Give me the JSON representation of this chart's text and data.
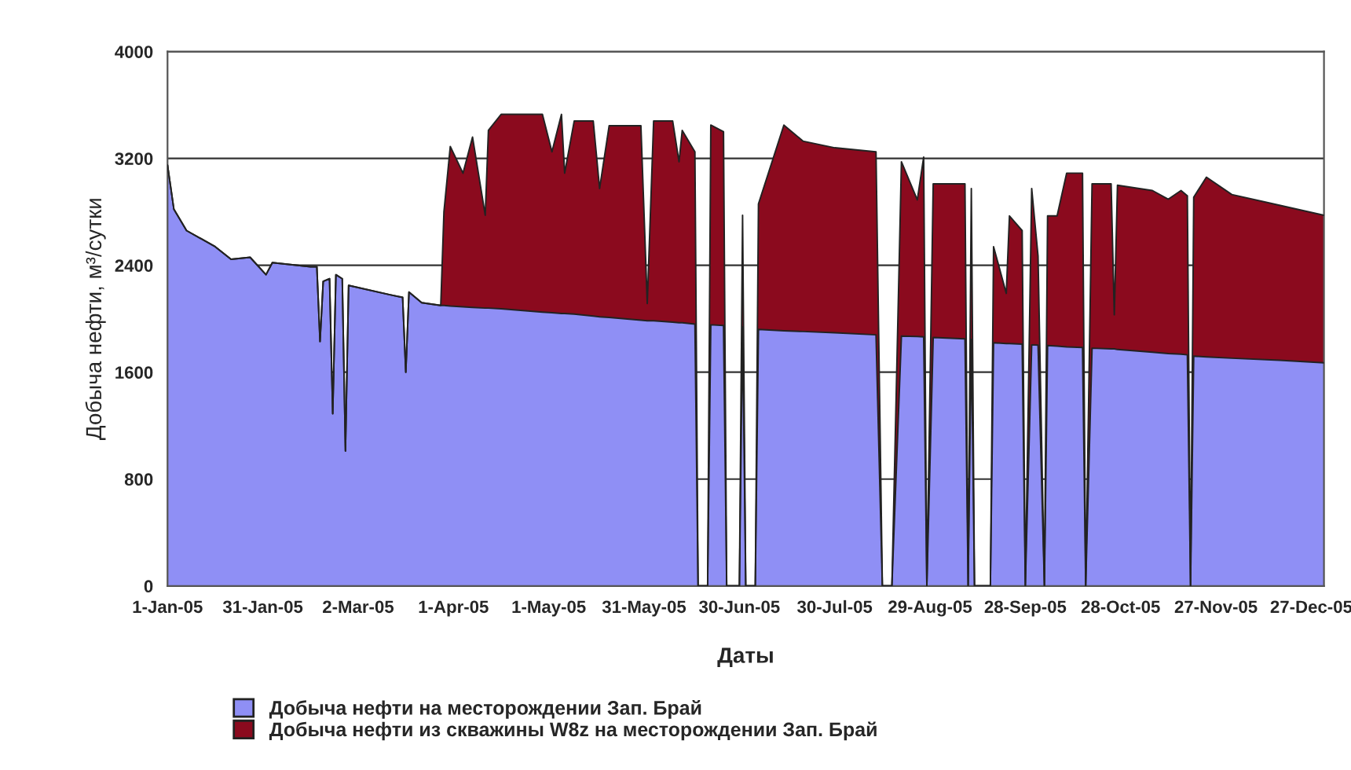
{
  "chart_data": {
    "type": "area",
    "stacked": true,
    "ylabel": "Добыча нефти, м³/сутки",
    "xlabel": "Даты",
    "x": [
      "2005-01-01",
      "2005-01-03",
      "2005-01-07",
      "2005-01-16",
      "2005-01-21",
      "2005-01-27",
      "2005-02-01",
      "2005-02-03",
      "2005-02-15",
      "2005-02-17",
      "2005-02-18",
      "2005-02-19",
      "2005-02-21",
      "2005-02-22",
      "2005-02-23",
      "2005-02-25",
      "2005-02-26",
      "2005-02-27",
      "2005-03-12",
      "2005-03-16",
      "2005-03-17",
      "2005-03-18",
      "2005-03-22",
      "2005-03-28",
      "2005-03-29",
      "2005-03-31",
      "2005-04-04",
      "2005-04-07",
      "2005-04-11",
      "2005-04-12",
      "2005-04-16",
      "2005-04-29",
      "2005-05-02",
      "2005-05-05",
      "2005-05-06",
      "2005-05-09",
      "2005-05-15",
      "2005-05-17",
      "2005-05-20",
      "2005-05-30",
      "2005-06-01",
      "2005-06-03",
      "2005-06-09",
      "2005-06-11",
      "2005-06-12",
      "2005-06-16",
      "2005-06-17",
      "2005-06-20",
      "2005-06-21",
      "2005-06-25",
      "2005-06-26",
      "2005-06-30",
      "2005-07-01",
      "2005-07-02",
      "2005-07-05",
      "2005-07-06",
      "2005-07-14",
      "2005-07-20",
      "2005-07-30",
      "2005-08-12",
      "2005-08-14",
      "2005-08-17",
      "2005-08-20",
      "2005-08-25",
      "2005-08-27",
      "2005-08-28",
      "2005-08-30",
      "2005-09-09",
      "2005-09-10",
      "2005-09-11",
      "2005-09-12",
      "2005-09-17",
      "2005-09-18",
      "2005-09-22",
      "2005-09-23",
      "2005-09-27",
      "2005-09-28",
      "2005-09-30",
      "2005-10-02",
      "2005-10-04",
      "2005-10-05",
      "2005-10-08",
      "2005-10-11",
      "2005-10-16",
      "2005-10-17",
      "2005-10-19",
      "2005-10-25",
      "2005-10-26",
      "2005-10-27",
      "2005-11-07",
      "2005-11-12",
      "2005-11-16",
      "2005-11-18",
      "2005-11-19",
      "2005-11-20",
      "2005-11-24",
      "2005-12-02",
      "2005-12-17",
      "2005-12-31"
    ],
    "series": [
      {
        "name": "Добыча нефти на месторождении Зап. Брай",
        "color": "#8f8ff5",
        "values": [
          3150,
          2820,
          2660,
          2540,
          2445,
          2460,
          2330,
          2420,
          2390,
          2390,
          1830,
          2280,
          2300,
          1290,
          2330,
          2300,
          1010,
          2250,
          2180,
          2160,
          1600,
          2200,
          2120,
          2100,
          2100,
          2095,
          2090,
          2085,
          2080,
          2080,
          2075,
          2050,
          2045,
          2040,
          2040,
          2035,
          2020,
          2015,
          2010,
          1990,
          1985,
          1985,
          1975,
          1970,
          1970,
          1960,
          0,
          0,
          1955,
          1950,
          0,
          0,
          1940,
          0,
          0,
          1920,
          1910,
          1905,
          1895,
          1880,
          0,
          0,
          1870,
          1868,
          1865,
          0,
          1860,
          1850,
          0,
          1845,
          0,
          0,
          1820,
          1815,
          1815,
          1810,
          0,
          1805,
          1803,
          0,
          1800,
          1795,
          1790,
          1785,
          0,
          1780,
          1775,
          1775,
          1770,
          1750,
          1740,
          1735,
          1730,
          0,
          1720,
          1715,
          1705,
          1690,
          1670
        ]
      },
      {
        "name": "Добыча нефти из скважины W8z на месторождении Зап. Брай",
        "color": "#8b0a1e",
        "values": [
          0,
          0,
          0,
          0,
          0,
          0,
          0,
          0,
          0,
          0,
          0,
          0,
          0,
          0,
          0,
          0,
          0,
          0,
          0,
          0,
          0,
          0,
          0,
          0,
          700,
          1195,
          1000,
          1275,
          695,
          1330,
          1455,
          1480,
          1205,
          1490,
          1050,
          1445,
          1460,
          960,
          1435,
          1455,
          130,
          1495,
          1505,
          1205,
          1440,
          1290,
          0,
          0,
          1495,
          1450,
          0,
          0,
          835,
          0,
          0,
          940,
          1540,
          1425,
          1385,
          1370,
          0,
          0,
          1305,
          1022,
          1345,
          0,
          1150,
          1160,
          0,
          1130,
          0,
          0,
          720,
          375,
          955,
          850,
          0,
          1170,
          667,
          0,
          970,
          975,
          1300,
          1305,
          0,
          1230,
          1235,
          255,
          1230,
          1210,
          1155,
          1225,
          1190,
          0,
          1190,
          1345,
          1225,
          1160,
          1105
        ]
      }
    ],
    "xlim": [
      "2005-01-01",
      "2005-12-31"
    ],
    "xticks": [
      {
        "value": "2005-01-01",
        "label": "1-Jan-05"
      },
      {
        "value": "2005-01-31",
        "label": "31-Jan-05"
      },
      {
        "value": "2005-03-02",
        "label": "2-Mar-05"
      },
      {
        "value": "2005-04-01",
        "label": "1-Apr-05"
      },
      {
        "value": "2005-05-01",
        "label": "1-May-05"
      },
      {
        "value": "2005-05-31",
        "label": "31-May-05"
      },
      {
        "value": "2005-06-30",
        "label": "30-Jun-05"
      },
      {
        "value": "2005-07-30",
        "label": "30-Jul-05"
      },
      {
        "value": "2005-08-29",
        "label": "29-Aug-05"
      },
      {
        "value": "2005-09-28",
        "label": "28-Sep-05"
      },
      {
        "value": "2005-10-28",
        "label": "28-Oct-05"
      },
      {
        "value": "2005-11-27",
        "label": "27-Nov-05"
      },
      {
        "value": "2005-12-27",
        "label": "27-Dec-05"
      }
    ],
    "ylim": [
      0,
      4000
    ],
    "yticks": [
      0,
      800,
      1600,
      2400,
      3200,
      4000
    ],
    "grid": "y",
    "legend": "bottom"
  }
}
